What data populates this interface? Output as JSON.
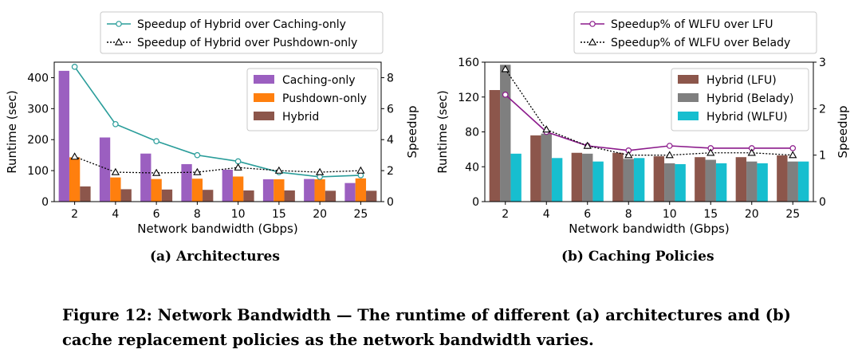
{
  "subcaptions": {
    "a": "(a) Architectures",
    "b": "(b) Caching Policies"
  },
  "caption": "Figure 12: Network Bandwidth — The runtime of different (a) architectures and (b) cache replacement policies as the network bandwidth varies.",
  "chart_data": [
    {
      "type": "bar",
      "xlabel": "Network bandwidth (Gbps)",
      "ylabel": "Runtime (sec)",
      "y2label": "Speedup",
      "categories": [
        "2",
        "4",
        "6",
        "8",
        "10",
        "15",
        "20",
        "25"
      ],
      "ylim": [
        0,
        450
      ],
      "yticks": [
        0,
        100,
        200,
        300,
        400
      ],
      "y2lim": [
        0,
        9
      ],
      "y2ticks": [
        0,
        2,
        4,
        6,
        8
      ],
      "series": [
        {
          "name": "Caching-only",
          "color": "#9b5fc0",
          "values": [
            422,
            207,
            155,
            121,
            103,
            72,
            73,
            60
          ]
        },
        {
          "name": "Pushdown-only",
          "color": "#ff7f0e",
          "values": [
            143,
            78,
            73,
            74,
            81,
            72,
            72,
            75
          ]
        },
        {
          "name": "Hybrid",
          "color": "#8c564b",
          "values": [
            49,
            40,
            39,
            38,
            36,
            36,
            35,
            35
          ]
        }
      ],
      "lines": [
        {
          "name": "Speedup of Hybrid over Caching-only",
          "color": "#2a9d9a",
          "style": "solid",
          "marker": "circle",
          "values": [
            8.7,
            5.0,
            3.9,
            3.0,
            2.6,
            1.9,
            1.6,
            1.7
          ]
        },
        {
          "name": "Speedup of Hybrid over Pushdown-only",
          "color": "#000000",
          "style": "dotted",
          "marker": "triangle",
          "values": [
            2.9,
            1.9,
            1.85,
            1.9,
            2.2,
            2.0,
            1.9,
            2.0
          ]
        }
      ],
      "legend_top": "above chart",
      "legend_bars": "top-right"
    },
    {
      "type": "bar",
      "xlabel": "Network bandwidth (Gbps)",
      "ylabel": "Runtime (sec)",
      "y2label": "Speedup",
      "categories": [
        "2",
        "4",
        "6",
        "8",
        "10",
        "15",
        "20",
        "25"
      ],
      "ylim": [
        0,
        160
      ],
      "yticks": [
        0,
        40,
        80,
        120,
        160
      ],
      "y2lim": [
        0,
        3
      ],
      "y2ticks": [
        0,
        1,
        2,
        3
      ],
      "series": [
        {
          "name": "Hybrid (LFU)",
          "color": "#8c564b",
          "values": [
            128,
            76,
            56,
            56,
            52,
            51,
            51,
            53
          ]
        },
        {
          "name": "Hybrid (Belady)",
          "color": "#7f7f7f",
          "values": [
            157,
            78,
            55,
            49,
            44,
            48,
            46,
            46
          ]
        },
        {
          "name": "Hybrid (WLFU)",
          "color": "#17becf",
          "values": [
            55,
            50,
            46,
            50,
            43,
            44,
            44,
            46
          ]
        }
      ],
      "lines": [
        {
          "name": "Speedup% of WLFU over LFU",
          "color": "#8b1a8b",
          "style": "solid",
          "marker": "circle",
          "values": [
            2.3,
            1.5,
            1.2,
            1.1,
            1.2,
            1.15,
            1.15,
            1.15
          ]
        },
        {
          "name": "Speedup% of WLFU over Belady",
          "color": "#000000",
          "style": "dotted",
          "marker": "triangle",
          "values": [
            2.85,
            1.55,
            1.2,
            1.0,
            1.0,
            1.05,
            1.05,
            1.0
          ]
        }
      ],
      "legend_top": "above chart",
      "legend_bars": "top-right"
    }
  ]
}
